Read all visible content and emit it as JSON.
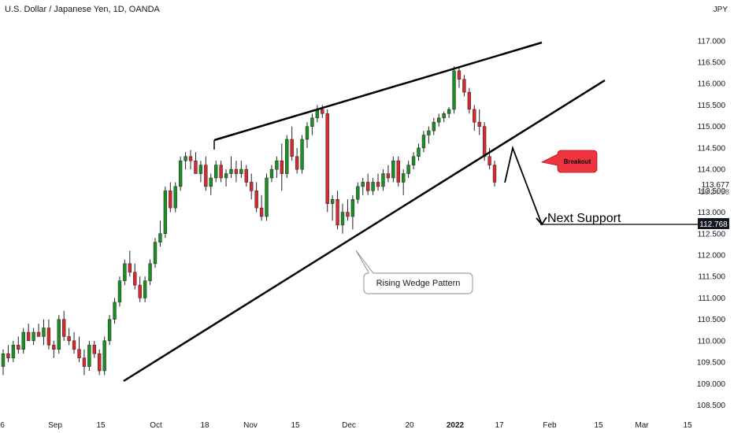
{
  "header": {
    "title": "U.S. Dollar / Japanese Yen, 1D, OANDA"
  },
  "price_axis": {
    "currency": "JPY",
    "ticks": [
      "117.000",
      "116.500",
      "116.000",
      "115.500",
      "115.000",
      "114.500",
      "114.000",
      "113.500",
      "113.000",
      "112.500",
      "112.000",
      "111.500",
      "111.000",
      "110.500",
      "110.000",
      "109.500",
      "109.000",
      "108.500"
    ],
    "current_price": "113.677",
    "countdown": "18:24:58",
    "marker_price": "112.768"
  },
  "time_axis": {
    "ticks": [
      "6",
      "Sep",
      "15",
      "Oct",
      "18",
      "Nov",
      "15",
      "Dec",
      "20",
      "2022",
      "17",
      "Feb",
      "15",
      "Mar",
      "15"
    ],
    "bold_tick": "2022"
  },
  "annotations": {
    "breakout": "Breakout",
    "next_support": "Next Support",
    "pattern": "Rising Wedge Pattern"
  },
  "colors": {
    "up": "#1b8e24",
    "down": "#d62a2f",
    "breakout_fill": "#ef3340",
    "line": "#000000"
  },
  "chart_data": {
    "type": "candlestick",
    "title": "U.S. Dollar / Japanese Yen, 1D, OANDA",
    "ylim": [
      108.4,
      117.4
    ],
    "ohlc": [
      [
        109.4,
        109.8,
        109.2,
        109.7
      ],
      [
        109.7,
        109.9,
        109.5,
        109.6
      ],
      [
        109.6,
        110.0,
        109.5,
        109.9
      ],
      [
        109.9,
        110.1,
        109.7,
        109.8
      ],
      [
        109.8,
        110.3,
        109.7,
        110.2
      ],
      [
        110.2,
        110.4,
        110.0,
        110.0
      ],
      [
        110.0,
        110.3,
        109.9,
        110.2
      ],
      [
        110.2,
        110.4,
        110.1,
        110.1
      ],
      [
        110.1,
        110.5,
        109.9,
        110.3
      ],
      [
        110.3,
        110.5,
        109.8,
        109.9
      ],
      [
        109.9,
        110.0,
        109.6,
        109.8
      ],
      [
        109.8,
        110.6,
        109.7,
        110.5
      ],
      [
        110.5,
        110.7,
        110.0,
        110.1
      ],
      [
        110.1,
        110.3,
        109.9,
        110.0
      ],
      [
        110.0,
        110.2,
        109.7,
        109.8
      ],
      [
        109.8,
        110.1,
        109.5,
        109.6
      ],
      [
        109.6,
        109.8,
        109.2,
        109.4
      ],
      [
        109.4,
        110.0,
        109.3,
        109.9
      ],
      [
        109.9,
        110.0,
        109.6,
        109.7
      ],
      [
        109.7,
        109.8,
        109.2,
        109.3
      ],
      [
        109.3,
        110.1,
        109.2,
        110.0
      ],
      [
        110.0,
        110.6,
        109.9,
        110.5
      ],
      [
        110.5,
        111.0,
        110.4,
        110.9
      ],
      [
        110.9,
        111.5,
        110.8,
        111.4
      ],
      [
        111.4,
        111.9,
        111.3,
        111.8
      ],
      [
        111.8,
        112.1,
        111.5,
        111.6
      ],
      [
        111.6,
        111.8,
        111.2,
        111.3
      ],
      [
        111.3,
        111.5,
        110.9,
        111.0
      ],
      [
        111.0,
        111.5,
        110.9,
        111.4
      ],
      [
        111.4,
        111.9,
        111.3,
        111.8
      ],
      [
        111.8,
        112.4,
        111.7,
        112.3
      ],
      [
        112.3,
        112.8,
        112.2,
        112.5
      ],
      [
        112.5,
        113.6,
        112.4,
        113.5
      ],
      [
        113.5,
        113.7,
        113.0,
        113.1
      ],
      [
        113.1,
        113.7,
        113.0,
        113.6
      ],
      [
        113.6,
        114.3,
        113.5,
        114.2
      ],
      [
        114.2,
        114.4,
        114.0,
        114.3
      ],
      [
        114.3,
        114.45,
        114.0,
        114.2
      ],
      [
        114.2,
        114.4,
        113.9,
        113.9
      ],
      [
        113.9,
        114.2,
        113.7,
        114.1
      ],
      [
        114.1,
        114.3,
        113.5,
        113.6
      ],
      [
        113.6,
        113.9,
        113.4,
        113.8
      ],
      [
        113.8,
        114.2,
        113.7,
        114.1
      ],
      [
        114.1,
        114.2,
        113.7,
        113.8
      ],
      [
        113.8,
        114.0,
        113.6,
        113.9
      ],
      [
        113.9,
        114.3,
        113.8,
        114.0
      ],
      [
        114.0,
        114.2,
        113.7,
        113.9
      ],
      [
        113.9,
        114.2,
        113.8,
        114.0
      ],
      [
        114.0,
        114.1,
        113.6,
        113.7
      ],
      [
        113.7,
        113.9,
        113.3,
        113.5
      ],
      [
        113.5,
        113.7,
        113.0,
        113.1
      ],
      [
        113.1,
        113.4,
        112.8,
        112.9
      ],
      [
        112.9,
        113.9,
        112.8,
        113.8
      ],
      [
        113.8,
        114.1,
        113.7,
        114.0
      ],
      [
        114.0,
        114.3,
        113.8,
        114.2
      ],
      [
        114.2,
        114.6,
        113.5,
        113.9
      ],
      [
        113.9,
        114.8,
        113.8,
        114.7
      ],
      [
        114.7,
        115.0,
        114.2,
        114.3
      ],
      [
        114.3,
        114.5,
        113.9,
        114.0
      ],
      [
        114.0,
        114.8,
        113.9,
        114.7
      ],
      [
        114.7,
        115.1,
        114.5,
        115.0
      ],
      [
        115.0,
        115.3,
        114.8,
        115.2
      ],
      [
        115.2,
        115.5,
        115.1,
        115.4
      ],
      [
        115.4,
        115.5,
        115.2,
        115.3
      ],
      [
        115.3,
        115.4,
        113.0,
        113.2
      ],
      [
        113.2,
        113.4,
        112.8,
        113.3
      ],
      [
        113.3,
        113.5,
        112.6,
        112.7
      ],
      [
        112.7,
        113.2,
        112.5,
        113.0
      ],
      [
        113.0,
        113.3,
        112.8,
        112.9
      ],
      [
        112.9,
        113.4,
        112.6,
        113.3
      ],
      [
        113.3,
        113.7,
        113.2,
        113.6
      ],
      [
        113.6,
        113.8,
        113.4,
        113.7
      ],
      [
        113.7,
        113.9,
        113.4,
        113.5
      ],
      [
        113.5,
        113.8,
        113.4,
        113.7
      ],
      [
        113.7,
        113.9,
        113.5,
        113.6
      ],
      [
        113.6,
        114.0,
        113.5,
        113.9
      ],
      [
        113.9,
        114.1,
        113.7,
        113.8
      ],
      [
        113.8,
        114.3,
        113.7,
        114.2
      ],
      [
        114.2,
        114.3,
        113.6,
        113.7
      ],
      [
        113.7,
        114.0,
        113.4,
        113.9
      ],
      [
        113.9,
        114.2,
        113.8,
        114.1
      ],
      [
        114.1,
        114.4,
        114.0,
        114.3
      ],
      [
        114.3,
        114.6,
        114.2,
        114.5
      ],
      [
        114.5,
        114.9,
        114.4,
        114.8
      ],
      [
        114.8,
        115.0,
        114.6,
        114.9
      ],
      [
        114.9,
        115.2,
        114.8,
        115.1
      ],
      [
        115.1,
        115.3,
        115.0,
        115.2
      ],
      [
        115.2,
        115.35,
        115.1,
        115.3
      ],
      [
        115.3,
        115.45,
        115.2,
        115.4
      ],
      [
        115.4,
        116.4,
        115.3,
        116.3
      ],
      [
        116.3,
        116.4,
        115.9,
        116.1
      ],
      [
        116.1,
        116.2,
        115.7,
        115.8
      ],
      [
        115.8,
        115.9,
        115.3,
        115.4
      ],
      [
        115.4,
        115.5,
        114.9,
        115.1
      ],
      [
        115.1,
        115.4,
        114.8,
        115.0
      ],
      [
        115.0,
        115.1,
        114.2,
        114.3
      ],
      [
        114.3,
        114.5,
        114.0,
        114.1
      ],
      [
        114.1,
        114.2,
        113.6,
        113.7
      ]
    ],
    "annotations": [
      "Breakout",
      "Next Support",
      "Rising Wedge Pattern"
    ]
  }
}
